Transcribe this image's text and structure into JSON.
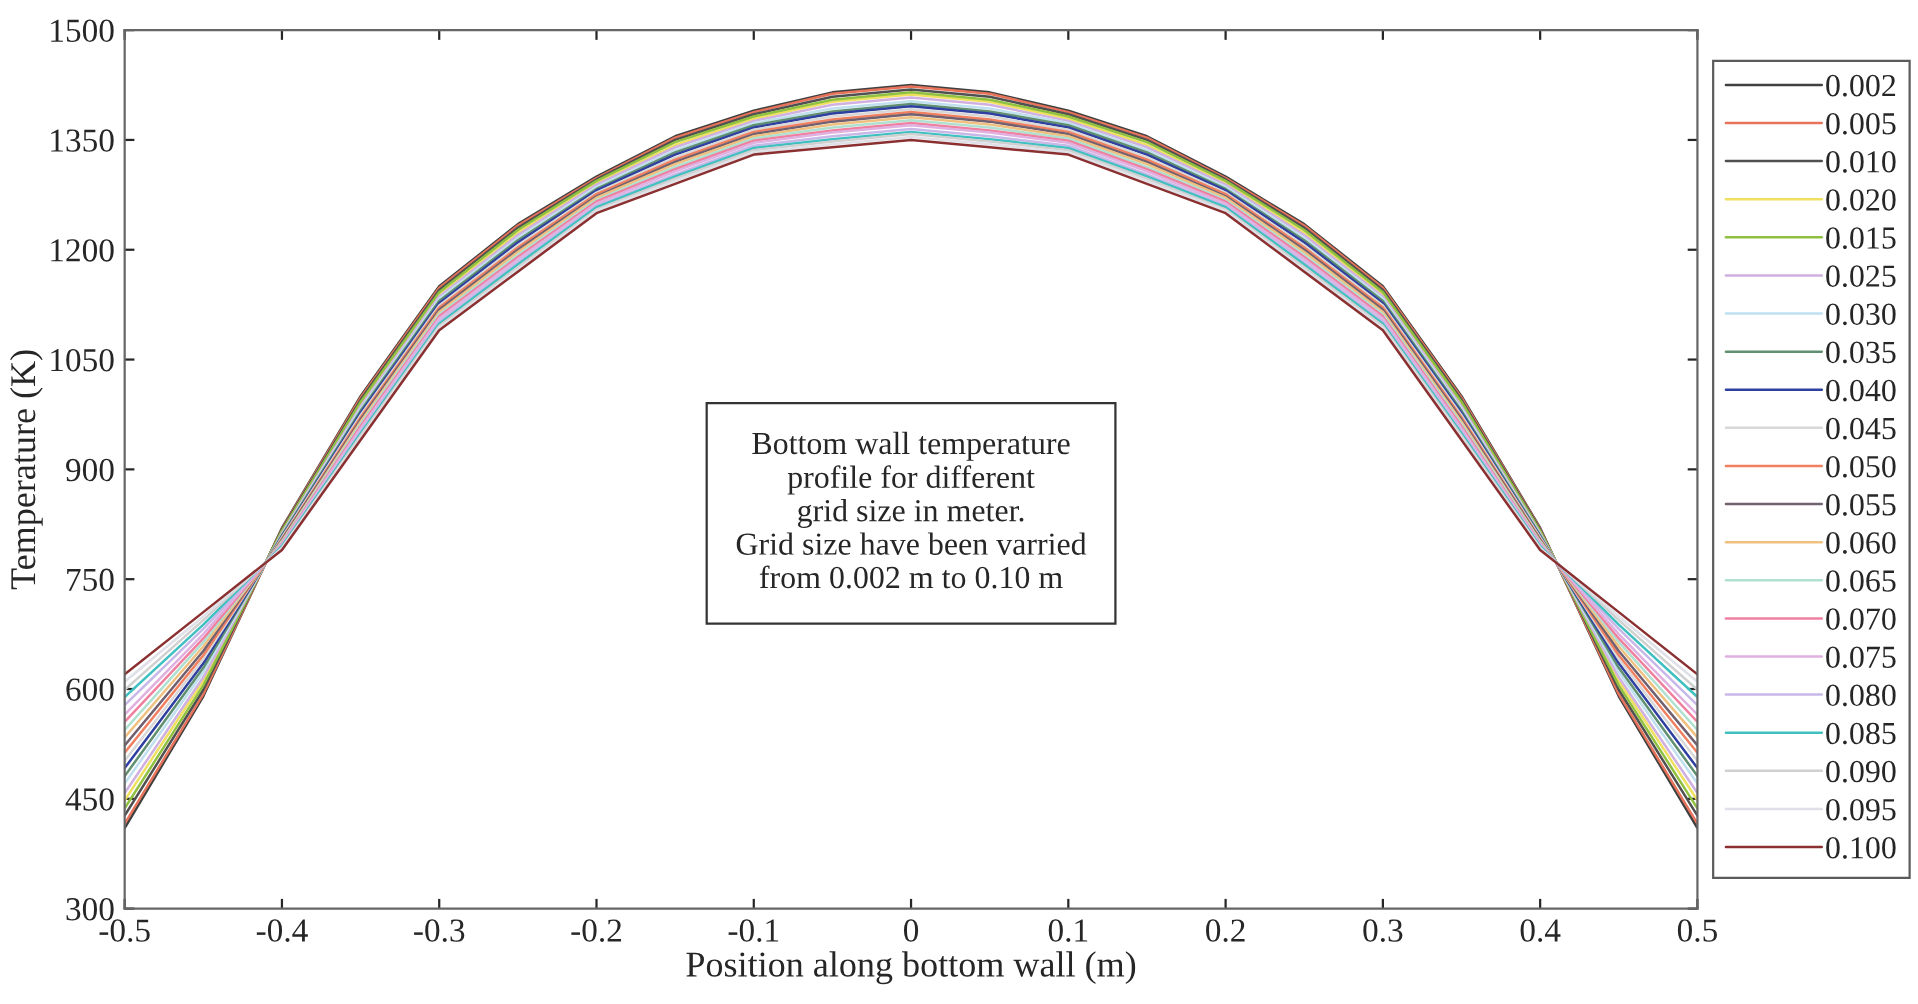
{
  "chart_data": {
    "type": "line",
    "xlabel": "Position along bottom wall (m)",
    "ylabel": "Temperature (K)",
    "annotations": [
      "Bottom wall temperature\nprofile for different\ngrid size in meter.\nGrid size have been varried\nfrom 0.002 m to 0.10 m"
    ],
    "x": [
      -0.5,
      -0.45,
      -0.4,
      -0.35,
      -0.3,
      -0.25,
      -0.2,
      -0.15,
      -0.1,
      -0.05,
      0,
      0.05,
      0.1,
      0.15,
      0.2,
      0.25,
      0.3,
      0.35,
      0.4,
      0.45,
      0.5
    ],
    "xlim": [
      -0.5,
      0.5
    ],
    "xticks": [
      -0.5,
      -0.4,
      -0.3,
      -0.2,
      -0.1,
      0,
      0.1,
      0.2,
      0.3,
      0.4,
      0.5
    ],
    "ylim": [
      300,
      1500
    ],
    "yticks": [
      300,
      450,
      600,
      750,
      900,
      1050,
      1200,
      1350,
      1500
    ],
    "grid": false,
    "legend": "right",
    "marker": "none",
    "line_style": "solid",
    "series": [
      {
        "name": "0.002",
        "color": "#404040",
        "values": [
          410,
          590,
          820,
          1000,
          1150,
          1235,
          1300,
          1355,
          1390,
          1415,
          1425,
          1415,
          1390,
          1355,
          1300,
          1235,
          1150,
          1000,
          820,
          590,
          410
        ]
      },
      {
        "name": "0.005",
        "color": "#e8735a",
        "values": [
          416,
          593,
          819,
          998,
          1148,
          1233,
          1298,
          1353,
          1388,
          1413,
          1423,
          1413,
          1388,
          1353,
          1298,
          1233,
          1148,
          998,
          819,
          593,
          416
        ]
      },
      {
        "name": "0.010",
        "color": "#505050",
        "values": [
          427,
          599,
          818,
          995,
          1145,
          1230,
          1296,
          1350,
          1385,
          1409,
          1419,
          1409,
          1385,
          1350,
          1296,
          1230,
          1145,
          995,
          818,
          599,
          427
        ]
      },
      {
        "name": "0.020",
        "color": "#f0e060",
        "values": [
          448,
          611,
          815,
          989,
          1139,
          1223,
          1291,
          1343,
          1379,
          1402,
          1412,
          1402,
          1379,
          1343,
          1291,
          1223,
          1139,
          989,
          815,
          611,
          448
        ]
      },
      {
        "name": "0.015",
        "color": "#90c040",
        "values": [
          437,
          605,
          816,
          992,
          1142,
          1227,
          1294,
          1347,
          1382,
          1405,
          1415,
          1405,
          1382,
          1347,
          1294,
          1227,
          1142,
          992,
          816,
          605,
          437
        ]
      },
      {
        "name": "0.025",
        "color": "#d0b0e0",
        "values": [
          458,
          616,
          813,
          986,
          1136,
          1220,
          1289,
          1340,
          1376,
          1398,
          1408,
          1398,
          1376,
          1340,
          1289,
          1220,
          1136,
          986,
          813,
          616,
          458
        ]
      },
      {
        "name": "0.030",
        "color": "#c0e0f0",
        "values": [
          471,
          623,
          811,
          983,
          1133,
          1216,
          1286,
          1336,
          1373,
          1393,
          1403,
          1393,
          1373,
          1336,
          1286,
          1216,
          1133,
          983,
          811,
          623,
          471
        ]
      },
      {
        "name": "0.035",
        "color": "#609070",
        "values": [
          481,
          629,
          810,
          980,
          1130,
          1213,
          1283,
          1333,
          1370,
          1389,
          1399,
          1389,
          1370,
          1333,
          1283,
          1213,
          1130,
          980,
          810,
          629,
          481
        ]
      },
      {
        "name": "0.040",
        "color": "#3040a0",
        "values": [
          492,
          635,
          808,
          977,
          1127,
          1210,
          1281,
          1330,
          1367,
          1386,
          1396,
          1386,
          1367,
          1330,
          1281,
          1210,
          1127,
          977,
          808,
          635,
          492
        ]
      },
      {
        "name": "0.045",
        "color": "#d8d8d8",
        "values": [
          502,
          641,
          807,
          974,
          1124,
          1206,
          1278,
          1326,
          1364,
          1382,
          1392,
          1382,
          1364,
          1326,
          1278,
          1206,
          1124,
          974,
          807,
          641,
          502
        ]
      },
      {
        "name": "0.050",
        "color": "#f08060",
        "values": [
          513,
          646,
          805,
          971,
          1121,
          1203,
          1276,
          1323,
          1361,
          1378,
          1388,
          1378,
          1361,
          1323,
          1276,
          1203,
          1121,
          971,
          805,
          646,
          513
        ]
      },
      {
        "name": "0.055",
        "color": "#706070",
        "values": [
          523,
          652,
          804,
          968,
          1118,
          1200,
          1273,
          1320,
          1358,
          1375,
          1385,
          1375,
          1358,
          1320,
          1273,
          1200,
          1118,
          968,
          804,
          652,
          523
        ]
      },
      {
        "name": "0.060",
        "color": "#f0c080",
        "values": [
          534,
          658,
          802,
          965,
          1115,
          1197,
          1271,
          1317,
          1355,
          1371,
          1381,
          1371,
          1355,
          1317,
          1271,
          1197,
          1115,
          965,
          802,
          658,
          534
        ]
      },
      {
        "name": "0.065",
        "color": "#b0e0d0",
        "values": [
          544,
          664,
          801,
          962,
          1112,
          1193,
          1268,
          1313,
          1352,
          1367,
          1377,
          1367,
          1352,
          1313,
          1268,
          1193,
          1112,
          962,
          801,
          664,
          544
        ]
      },
      {
        "name": "0.070",
        "color": "#f080a0",
        "values": [
          555,
          669,
          799,
          959,
          1109,
          1190,
          1266,
          1310,
          1349,
          1363,
          1373,
          1363,
          1349,
          1310,
          1266,
          1190,
          1109,
          959,
          799,
          669,
          555
        ]
      },
      {
        "name": "0.075",
        "color": "#e0b0e0",
        "values": [
          565,
          675,
          798,
          956,
          1106,
          1187,
          1263,
          1307,
          1346,
          1360,
          1370,
          1360,
          1346,
          1307,
          1263,
          1187,
          1106,
          956,
          798,
          675,
          565
        ]
      },
      {
        "name": "0.080",
        "color": "#c8b8e8",
        "values": [
          578,
          682,
          796,
          952,
          1102,
          1183,
          1260,
          1303,
          1342,
          1355,
          1365,
          1355,
          1342,
          1303,
          1260,
          1183,
          1102,
          952,
          796,
          682,
          578
        ]
      },
      {
        "name": "0.085",
        "color": "#40c0c0",
        "values": [
          589,
          688,
          795,
          949,
          1099,
          1180,
          1258,
          1300,
          1339,
          1351,
          1361,
          1351,
          1339,
          1300,
          1258,
          1180,
          1099,
          949,
          795,
          688,
          589
        ]
      },
      {
        "name": "0.090",
        "color": "#d0d0d0",
        "values": [
          599,
          694,
          793,
          946,
          1096,
          1176,
          1255,
          1297,
          1336,
          1348,
          1358,
          1348,
          1336,
          1297,
          1255,
          1176,
          1096,
          946,
          793,
          694,
          599
        ]
      },
      {
        "name": "0.095",
        "color": "#e0e0e8",
        "values": [
          610,
          699,
          792,
          943,
          1093,
          1173,
          1253,
          1294,
          1333,
          1344,
          1354,
          1344,
          1333,
          1294,
          1253,
          1173,
          1093,
          943,
          792,
          699,
          610
        ]
      },
      {
        "name": "0.100",
        "color": "#8b3030",
        "values": [
          620,
          705,
          790,
          940,
          1090,
          1170,
          1250,
          1290,
          1330,
          1340,
          1350,
          1340,
          1330,
          1290,
          1250,
          1170,
          1090,
          940,
          790,
          705,
          620
        ]
      }
    ]
  }
}
